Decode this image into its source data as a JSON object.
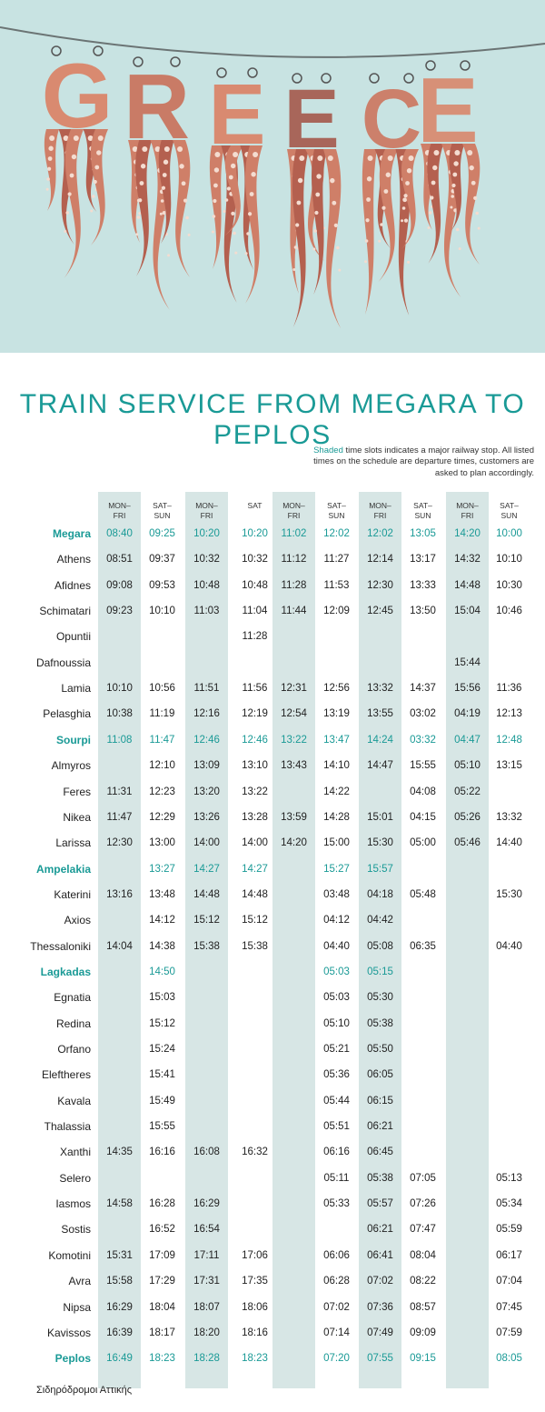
{
  "hero": {
    "title_letters": [
      "G",
      "R",
      "E",
      "E",
      "C",
      "E"
    ],
    "bg_color": "#c8e3e2",
    "letter_colors": [
      "#d98a70",
      "#c97b66",
      "#d98a70",
      "#a8665a",
      "#cc806b",
      "#d79077"
    ]
  },
  "heading": "TRAIN SERVICE FROM MEGARA TO PEPLOS",
  "note": {
    "highlight": "Shaded",
    "rest": " time slots indicates a major railway stop. All listed times on the schedule are departure times, customers are asked to plan accordingly."
  },
  "colors": {
    "accent": "#1a9a96",
    "shade": "#d7e6e5"
  },
  "columns": [
    {
      "line1": "MON–",
      "line2": "FRI",
      "shaded": true
    },
    {
      "line1": "SAT–",
      "line2": "SUN",
      "shaded": false
    },
    {
      "line1": "MON–",
      "line2": "FRI",
      "shaded": true
    },
    {
      "line1": "SAT",
      "line2": "",
      "shaded": false
    },
    {
      "line1": "MON–",
      "line2": "FRI",
      "shaded": true
    },
    {
      "line1": "SAT–",
      "line2": "SUN",
      "shaded": false
    },
    {
      "line1": "MON–",
      "line2": "FRI",
      "shaded": true
    },
    {
      "line1": "SAT–",
      "line2": "SUN",
      "shaded": false
    },
    {
      "line1": "MON–",
      "line2": "FRI",
      "shaded": true
    },
    {
      "line1": "SAT–",
      "line2": "SUN",
      "shaded": false
    }
  ],
  "stations": [
    {
      "name": "Megara",
      "major": true,
      "times": [
        "08:40",
        "09:25",
        "10:20",
        "10:20",
        "11:02",
        "12:02",
        "12:02",
        "13:05",
        "14:20",
        "10:00"
      ]
    },
    {
      "name": "Athens",
      "major": false,
      "times": [
        "08:51",
        "09:37",
        "10:32",
        "10:32",
        "11:12",
        "11:27",
        "12:14",
        "13:17",
        "14:32",
        "10:10"
      ]
    },
    {
      "name": "Afidnes",
      "major": false,
      "times": [
        "09:08",
        "09:53",
        "10:48",
        "10:48",
        "11:28",
        "11:53",
        "12:30",
        "13:33",
        "14:48",
        "10:30"
      ]
    },
    {
      "name": "Schimatari",
      "major": false,
      "times": [
        "09:23",
        "10:10",
        "11:03",
        "11:04",
        "11:44",
        "12:09",
        "12:45",
        "13:50",
        "15:04",
        "10:46"
      ]
    },
    {
      "name": "Opuntii",
      "major": false,
      "times": [
        "",
        "",
        "",
        "11:28",
        "",
        "",
        "",
        "",
        "",
        ""
      ]
    },
    {
      "name": "Dafnoussia",
      "major": false,
      "times": [
        "",
        "",
        "",
        "",
        "",
        "",
        "",
        "",
        "15:44",
        ""
      ]
    },
    {
      "name": "Lamia",
      "major": false,
      "times": [
        "10:10",
        "10:56",
        "11:51",
        "11:56",
        "12:31",
        "12:56",
        "13:32",
        "14:37",
        "15:56",
        "11:36"
      ]
    },
    {
      "name": "Pelasghia",
      "major": false,
      "times": [
        "10:38",
        "11:19",
        "12:16",
        "12:19",
        "12:54",
        "13:19",
        "13:55",
        "03:02",
        "04:19",
        "12:13"
      ]
    },
    {
      "name": "Sourpi",
      "major": true,
      "times": [
        "11:08",
        "11:47",
        "12:46",
        "12:46",
        "13:22",
        "13:47",
        "14:24",
        "03:32",
        "04:47",
        "12:48"
      ]
    },
    {
      "name": "Almyros",
      "major": false,
      "times": [
        "",
        "12:10",
        "13:09",
        "13:10",
        "13:43",
        "14:10",
        "14:47",
        "15:55",
        "05:10",
        "13:15"
      ]
    },
    {
      "name": "Feres",
      "major": false,
      "times": [
        "11:31",
        "12:23",
        "13:20",
        "13:22",
        "",
        "14:22",
        "",
        "04:08",
        "05:22",
        ""
      ]
    },
    {
      "name": "Nikea",
      "major": false,
      "times": [
        "11:47",
        "12:29",
        "13:26",
        "13:28",
        "13:59",
        "14:28",
        "15:01",
        "04:15",
        "05:26",
        "13:32"
      ]
    },
    {
      "name": "Larissa",
      "major": false,
      "times": [
        "12:30",
        "13:00",
        "14:00",
        "14:00",
        "14:20",
        "15:00",
        "15:30",
        "05:00",
        "05:46",
        "14:40"
      ]
    },
    {
      "name": "Ampelakia",
      "major": true,
      "times": [
        "",
        "13:27",
        "14:27",
        "14:27",
        "",
        "15:27",
        "15:57",
        "",
        "",
        ""
      ]
    },
    {
      "name": "Katerini",
      "major": false,
      "times": [
        "13:16",
        "13:48",
        "14:48",
        "14:48",
        "",
        "03:48",
        "04:18",
        "05:48",
        "",
        "15:30"
      ]
    },
    {
      "name": "Axios",
      "major": false,
      "times": [
        "",
        "14:12",
        "15:12",
        "15:12",
        "",
        "04:12",
        "04:42",
        "",
        "",
        ""
      ]
    },
    {
      "name": "Thessaloniki",
      "major": false,
      "times": [
        "14:04",
        "14:38",
        "15:38",
        "15:38",
        "",
        "04:40",
        "05:08",
        "06:35",
        "",
        "04:40"
      ]
    },
    {
      "name": "Lagkadas",
      "major": true,
      "times": [
        "",
        "14:50",
        "",
        "",
        "",
        "05:03",
        "05:15",
        "",
        "",
        ""
      ]
    },
    {
      "name": "Egnatia",
      "major": false,
      "times": [
        "",
        "15:03",
        "",
        "",
        "",
        "05:03",
        "05:30",
        "",
        "",
        ""
      ]
    },
    {
      "name": "Redina",
      "major": false,
      "times": [
        "",
        "15:12",
        "",
        "",
        "",
        "05:10",
        "05:38",
        "",
        "",
        ""
      ]
    },
    {
      "name": "Orfano",
      "major": false,
      "times": [
        "",
        "15:24",
        "",
        "",
        "",
        "05:21",
        "05:50",
        "",
        "",
        ""
      ]
    },
    {
      "name": "Eleftheres",
      "major": false,
      "times": [
        "",
        "15:41",
        "",
        "",
        "",
        "05:36",
        "06:05",
        "",
        "",
        ""
      ]
    },
    {
      "name": "Kavala",
      "major": false,
      "times": [
        "",
        "15:49",
        "",
        "",
        "",
        "05:44",
        "06:15",
        "",
        "",
        ""
      ]
    },
    {
      "name": "Thalassia",
      "major": false,
      "times": [
        "",
        "15:55",
        "",
        "",
        "",
        "05:51",
        "06:21",
        "",
        "",
        ""
      ]
    },
    {
      "name": "Xanthi",
      "major": false,
      "times": [
        "14:35",
        "16:16",
        "16:08",
        "16:32",
        "",
        "06:16",
        "06:45",
        "",
        "",
        ""
      ]
    },
    {
      "name": "Selero",
      "major": false,
      "times": [
        "",
        "",
        "",
        "",
        "",
        "05:11",
        "05:38",
        "07:05",
        "",
        "05:13"
      ]
    },
    {
      "name": "Iasmos",
      "major": false,
      "times": [
        "14:58",
        "16:28",
        "16:29",
        "",
        "",
        "05:33",
        "05:57",
        "07:26",
        "",
        "05:34"
      ]
    },
    {
      "name": "Sostis",
      "major": false,
      "times": [
        "",
        "16:52",
        "16:54",
        "",
        "",
        "",
        "06:21",
        "07:47",
        "",
        "05:59"
      ]
    },
    {
      "name": "Komotini",
      "major": false,
      "times": [
        "15:31",
        "17:09",
        "17:11",
        "17:06",
        "",
        "06:06",
        "06:41",
        "08:04",
        "",
        "06:17"
      ]
    },
    {
      "name": "Avra",
      "major": false,
      "times": [
        "15:58",
        "17:29",
        "17:31",
        "17:35",
        "",
        "06:28",
        "07:02",
        "08:22",
        "",
        "07:04"
      ]
    },
    {
      "name": "Nipsa",
      "major": false,
      "times": [
        "16:29",
        "18:04",
        "18:07",
        "18:06",
        "",
        "07:02",
        "07:36",
        "08:57",
        "",
        "07:45"
      ]
    },
    {
      "name": "Kavissos",
      "major": false,
      "times": [
        "16:39",
        "18:17",
        "18:20",
        "18:16",
        "",
        "07:14",
        "07:49",
        "09:09",
        "",
        "07:59"
      ]
    },
    {
      "name": "Peplos",
      "major": true,
      "times": [
        "16:49",
        "18:23",
        "18:28",
        "18:23",
        "",
        "07:20",
        "07:55",
        "09:15",
        "",
        "08:05"
      ]
    }
  ],
  "footer": "Σιδηρόδρομοι Αττικής"
}
